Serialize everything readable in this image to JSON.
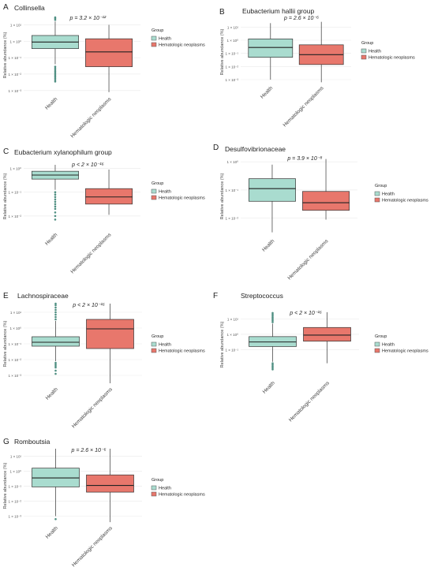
{
  "legend": {
    "title": "Group",
    "items": [
      "Health",
      "Hematologic neoplasms"
    ]
  },
  "colors": {
    "health": "#a9dccf",
    "neoplasm": "#e8776c",
    "outlier": "#4f8f82",
    "grid": "#e9e9e9",
    "text": "#222222"
  },
  "chart_data": [
    {
      "panel": "A",
      "title": "Collinsella",
      "pvalue": "p = 3.2 × 10⁻¹²",
      "type": "box",
      "categories": [
        "Health",
        "Hematologic neoplasms"
      ],
      "ylabel": "Relative abundance (%)",
      "yscale": "log10",
      "yticks": [
        "1 × 10¹",
        "1 × 10⁰",
        "1 × 10⁻¹",
        "1 × 10⁻²",
        "1 × 10⁻³"
      ],
      "ylim_log10": [
        -3.25,
        1.55
      ],
      "series": [
        {
          "name": "Health",
          "whisker_low": -1.4,
          "q1": -0.45,
          "median": -0.05,
          "q3": 0.35,
          "whisker_high": 1.2,
          "outliers_high": [
            1.3,
            1.38,
            1.45
          ],
          "outliers_low": [
            -1.55,
            -1.65,
            -1.75,
            -1.85,
            -1.95,
            -2.05,
            -2.15,
            -2.25,
            -2.35,
            -2.45
          ]
        },
        {
          "name": "Hematologic neoplasms",
          "whisker_low": -3.1,
          "q1": -1.55,
          "median": -0.65,
          "q3": 0.15,
          "whisker_high": 1.0,
          "outliers_high": [],
          "outliers_low": []
        }
      ]
    },
    {
      "panel": "B",
      "title": "Eubacterium hallii group",
      "pvalue": "p = 2.6 × 10⁻⁶",
      "type": "box",
      "categories": [
        "Health",
        "Hematologic neoplasms"
      ],
      "ylabel": "Relative abundance (%)",
      "yscale": "log10",
      "yticks": [
        "1 × 10¹",
        "1 × 10⁰",
        "1 × 10⁻¹",
        "1 × 10⁻²",
        "1 × 10⁻³"
      ],
      "ylim_log10": [
        -3.3,
        1.5
      ],
      "series": [
        {
          "name": "Health",
          "whisker_low": -3.0,
          "q1": -1.3,
          "median": -0.55,
          "q3": 0.1,
          "whisker_high": 1.3,
          "outliers_high": [],
          "outliers_low": []
        },
        {
          "name": "Hematologic neoplasms",
          "whisker_low": -3.2,
          "q1": -1.85,
          "median": -1.1,
          "q3": -0.35,
          "whisker_high": 1.4,
          "outliers_high": [],
          "outliers_low": []
        }
      ]
    },
    {
      "panel": "C",
      "title": "Eubacterium xylanophilum group",
      "pvalue": "p < 2 × 10⁻¹⁶",
      "type": "box",
      "categories": [
        "Health",
        "Hematologic neoplasms"
      ],
      "ylabel": "Relative abundance (%)",
      "yscale": "log10",
      "yticks": [
        "1 × 10⁰",
        "1 × 10⁻¹",
        "1 × 10⁻²"
      ],
      "ylim_log10": [
        -2.6,
        0.25
      ],
      "series": [
        {
          "name": "Health",
          "whisker_low": -0.9,
          "q1": -0.45,
          "median": -0.28,
          "q3": -0.12,
          "whisker_high": 0.15,
          "outliers_high": [],
          "outliers_low": [
            -1.0,
            -1.1,
            -1.2,
            -1.3,
            -1.4,
            -1.5,
            -1.6,
            -1.7,
            -1.85,
            -2.0,
            -2.15
          ]
        },
        {
          "name": "Hematologic neoplasms",
          "whisker_low": -1.95,
          "q1": -1.5,
          "median": -1.2,
          "q3": -0.85,
          "whisker_high": -0.05,
          "outliers_high": [],
          "outliers_low": []
        }
      ]
    },
    {
      "panel": "D",
      "title": "Desulfovibrionaceae",
      "pvalue": "p = 3.9 × 10⁻⁸",
      "type": "box",
      "categories": [
        "Health",
        "Hematologic neoplasms"
      ],
      "ylabel": "Relative abundance (%)",
      "yscale": "log10",
      "yticks": [
        "1 × 10⁰",
        "1 × 10⁻¹",
        "1 × 10⁻²"
      ],
      "ylim_log10": [
        -2.65,
        0.2
      ],
      "series": [
        {
          "name": "Health",
          "whisker_low": -2.5,
          "q1": -1.4,
          "median": -0.95,
          "q3": -0.6,
          "whisker_high": -0.1,
          "outliers_high": [],
          "outliers_low": []
        },
        {
          "name": "Hematologic neoplasms",
          "whisker_low": -2.05,
          "q1": -1.72,
          "median": -1.45,
          "q3": -1.05,
          "whisker_high": 0.1,
          "outliers_high": [],
          "outliers_low": []
        }
      ]
    },
    {
      "panel": "E",
      "title": "Lachnospiraceae",
      "pvalue": "p < 2 × 10⁻¹⁶",
      "type": "box",
      "categories": [
        "Health",
        "Hematologic neoplasms"
      ],
      "ylabel": "Relative abundance (%)",
      "yscale": "log10",
      "yticks": [
        "1 × 10¹",
        "1 × 10⁰",
        "1 × 10⁻¹",
        "1 × 10⁻²",
        "1 × 10⁻³"
      ],
      "ylim_log10": [
        -3.6,
        1.6
      ],
      "series": [
        {
          "name": "Health",
          "whisker_low": -2.1,
          "q1": -1.15,
          "median": -0.9,
          "q3": -0.55,
          "whisker_high": 0.45,
          "outliers_high": [
            0.55,
            0.7,
            0.85,
            1.0,
            1.15,
            1.3,
            1.45,
            1.55
          ],
          "outliers_low": [
            -2.2,
            -2.3,
            -2.4,
            -2.5,
            -2.7,
            -2.9
          ]
        },
        {
          "name": "Hematologic neoplasms",
          "whisker_low": -3.5,
          "q1": -1.3,
          "median": -0.05,
          "q3": 0.55,
          "whisker_high": 1.55,
          "outliers_high": [],
          "outliers_low": []
        }
      ]
    },
    {
      "panel": "F",
      "title": "Streptococcus",
      "pvalue": "p < 2 × 10⁻¹⁶",
      "type": "box",
      "categories": [
        "Health",
        "Hematologic neoplasms"
      ],
      "ylabel": "Relative abundance (%)",
      "yscale": "log10",
      "yticks": [
        "1 × 10¹",
        "1 × 10⁰",
        "1 × 10⁻¹"
      ],
      "ylim_log10": [
        -2.9,
        1.55
      ],
      "series": [
        {
          "name": "Health",
          "whisker_low": -1.8,
          "q1": -0.8,
          "median": -0.5,
          "q3": -0.15,
          "whisker_high": 0.7,
          "outliers_high": [
            0.8,
            0.9,
            1.0,
            1.1,
            1.2,
            1.3,
            1.4
          ],
          "outliers_low": [
            -1.9,
            -2.0,
            -2.1,
            -2.2,
            -2.3
          ]
        },
        {
          "name": "Hematologic neoplasms",
          "whisker_low": -1.9,
          "q1": -0.45,
          "median": -0.05,
          "q3": 0.45,
          "whisker_high": 1.45,
          "outliers_high": [],
          "outliers_low": []
        }
      ]
    },
    {
      "panel": "G",
      "title": "Romboutsia",
      "pvalue": "p = 2.6 × 10⁻⁶",
      "type": "box",
      "categories": [
        "Health",
        "Hematologic neoplasms"
      ],
      "ylabel": "Relative abundance (%)",
      "yscale": "log10",
      "yticks": [
        "1 × 10¹",
        "1 × 10⁰",
        "1 × 10⁻¹",
        "1 × 10⁻²",
        "1 × 10⁻³"
      ],
      "ylim_log10": [
        -3.5,
        1.55
      ],
      "series": [
        {
          "name": "Health",
          "whisker_low": -3.0,
          "q1": -1.05,
          "median": -0.45,
          "q3": 0.2,
          "whisker_high": 1.5,
          "outliers_high": [],
          "outliers_low": [
            -3.2
          ]
        },
        {
          "name": "Hematologic neoplasms",
          "whisker_low": -3.4,
          "q1": -1.4,
          "median": -0.95,
          "q3": -0.25,
          "whisker_high": 1.5,
          "outliers_high": [],
          "outliers_low": []
        }
      ]
    }
  ]
}
